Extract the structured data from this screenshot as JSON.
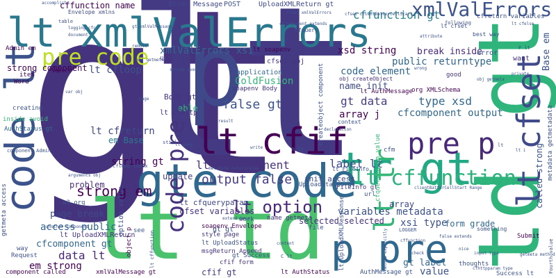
{
  "word_cloud": {
    "words": [
      {
        "text": "gt",
        "color": "#46337e",
        "vertical": false
      },
      {
        "text": "lt",
        "color": "#443a83",
        "vertical": false
      },
      {
        "text": "p",
        "color": "#3f4889",
        "vertical": false
      },
      {
        "text": "lt td",
        "color": "#4ac16d",
        "vertical": false
      },
      {
        "text": "td gt",
        "color": "#2fb47c",
        "vertical": true
      },
      {
        "text": "tr gt",
        "color": "#22a884",
        "vertical": false
      },
      {
        "text": "lt xmlValErrors",
        "color": "#2a788e",
        "vertical": false
      },
      {
        "text": "gte code",
        "color": "#31688e",
        "vertical": false
      },
      {
        "text": "code lt",
        "color": "#3b528b",
        "vertical": true
      },
      {
        "text": "lt cfif",
        "color": "#440154",
        "vertical": false
      },
      {
        "text": "lt cffunction",
        "color": "#2db27d",
        "vertical": false
      },
      {
        "text": "pre p",
        "color": "#482878",
        "vertical": false
      },
      {
        "text": "lt cfset",
        "color": "#3e4a89",
        "vertical": true
      },
      {
        "text": "p pre",
        "color": "#31688e",
        "vertical": false
      },
      {
        "text": "pre code",
        "color": "#bddf26",
        "vertical": false
      },
      {
        "text": "xmlValErrors gt",
        "color": "#3b528b",
        "vertical": false
      },
      {
        "text": "cffunction gt",
        "color": "#26828e",
        "vertical": false
      },
      {
        "text": "cffunction name",
        "color": "#440154",
        "vertical": false
      },
      {
        "text": "code pre",
        "color": "#46337e",
        "vertical": true
      },
      {
        "text": "lt cfcomponent",
        "color": "#46337e",
        "vertical": false
      },
      {
        "text": "lt option",
        "color": "#482878",
        "vertical": false
      },
      {
        "text": "lt tr",
        "color": "#35b779",
        "vertical": true
      },
      {
        "text": "false gt",
        "color": "#3b528b",
        "vertical": false
      },
      {
        "text": "strong em",
        "color": "#440154",
        "vertical": false
      },
      {
        "text": "output false",
        "color": "#443a83",
        "vertical": false
      },
      {
        "text": "ColdFusion",
        "color": "#35b779",
        "vertical": false
      },
      {
        "text": "gt data",
        "color": "#433e85",
        "vertical": false
      },
      {
        "text": "xsd string",
        "color": "#440154",
        "vertical": false
      },
      {
        "text": "xmlValErrors xsi",
        "color": "#31688e",
        "vertical": false
      },
      {
        "text": "lt cfloop",
        "color": "#3b528b",
        "vertical": false
      },
      {
        "text": "public returntype",
        "color": "#31688e",
        "vertical": false
      },
      {
        "text": "break inside",
        "color": "#482878",
        "vertical": false
      },
      {
        "text": "code element",
        "color": "#31688e",
        "vertical": false
      },
      {
        "text": "type xsd",
        "color": "#31688e",
        "vertical": false
      },
      {
        "text": "label lt",
        "color": "#3e4989",
        "vertical": false
      },
      {
        "text": "cfcomponent output",
        "color": "#31688e",
        "vertical": false
      },
      {
        "text": "array j",
        "color": "#440154",
        "vertical": false
      },
      {
        "text": "string gt",
        "color": "#440154",
        "vertical": false
      },
      {
        "text": "lt cfreturn",
        "color": "#3e4989",
        "vertical": false
      },
      {
        "text": "em Base",
        "color": "#2a788e",
        "vertical": false
      },
      {
        "text": "problem",
        "color": "#472d7b",
        "vertical": false
      },
      {
        "text": "data lt",
        "color": "#482878",
        "vertical": false
      },
      {
        "text": "em strong",
        "color": "#440154",
        "vertical": false
      },
      {
        "text": "access public",
        "color": "#33638d",
        "vertical": false
      },
      {
        "text": "cfcomponent gt",
        "color": "#31688e",
        "vertical": false
      },
      {
        "text": "page break",
        "color": "#3e4a89",
        "vertical": false
      },
      {
        "text": "lt UploadXMLReturn",
        "color": "#46337e",
        "vertical": false
      },
      {
        "text": "variables metadata",
        "color": "#3b528b",
        "vertical": false
      },
      {
        "text": "selected selected",
        "color": "#46337e",
        "vertical": false
      },
      {
        "text": "cfset variables",
        "color": "#46337e",
        "vertical": false
      },
      {
        "text": "lt cfqueryparam",
        "color": "#3e4989",
        "vertical": false
      },
      {
        "text": "xsi type",
        "color": "#3b528b",
        "vertical": false
      },
      {
        "text": "form grade",
        "color": "#31688e",
        "vertical": false
      },
      {
        "text": "gt label",
        "color": "#31688e",
        "vertical": false
      },
      {
        "text": "value",
        "color": "#3b528b",
        "vertical": false
      },
      {
        "text": "cfif gt",
        "color": "#433e85",
        "vertical": false
      },
      {
        "text": "Base em",
        "color": "#3b528b",
        "vertical": true
      },
      {
        "text": "called strong",
        "color": "#3b528b",
        "vertical": true
      },
      {
        "text": "update",
        "color": "#433e85",
        "vertical": false
      },
      {
        "text": "init access",
        "color": "#3e4989",
        "vertical": false
      },
      {
        "text": "array",
        "color": "#3e4989",
        "vertical": false
      },
      {
        "text": "cfset obj",
        "color": "#46337e",
        "vertical": false
      },
      {
        "text": "application",
        "color": "#31688e",
        "vertical": false
      },
      {
        "text": "name init",
        "color": "#3e4989",
        "vertical": false
      },
      {
        "text": "Body gt",
        "color": "#46337e",
        "vertical": false
      },
      {
        "text": "able",
        "color": "#35b779",
        "vertical": false
      },
      {
        "text": "lt cfhttp",
        "color": "#46337e",
        "vertical": false
      },
      {
        "text": "strong component",
        "color": "#440154",
        "vertical": false
      },
      {
        "text": "Error Message",
        "color": "#3e4989",
        "vertical": false
      },
      {
        "text": "POST",
        "color": "#3b528b",
        "vertical": false
      },
      {
        "text": "UploadXMLReturn gt",
        "color": "#3e4989",
        "vertical": false
      },
      {
        "text": "Envelope xmlns",
        "color": "#3e4989",
        "vertical": false
      },
      {
        "text": "Admin em",
        "color": "#440154",
        "vertical": false
      },
      {
        "text": "item",
        "color": "#440154",
        "vertical": false
      },
      {
        "text": "Word",
        "color": "#440154",
        "vertical": false
      },
      {
        "text": "creating",
        "color": "#3b528b",
        "vertical": false
      },
      {
        "text": "inside avoid",
        "color": "#35b779",
        "vertical": false
      },
      {
        "text": "AuthStatus gt",
        "color": "#31688e",
        "vertical": false
      },
      {
        "text": "select",
        "color": "#440154",
        "vertical": false
      },
      {
        "text": "lt AuthMessage",
        "color": "#440154",
        "vertical": false
      },
      {
        "text": "org XMLSchema",
        "color": "#440154",
        "vertical": false
      },
      {
        "text": "obj createObject",
        "color": "#46337e",
        "vertical": false
      },
      {
        "text": "soapenv Body",
        "color": "#46337e",
        "vertical": false
      },
      {
        "text": "error",
        "color": "#3b528b",
        "vertical": false
      },
      {
        "text": "want",
        "color": "#46337e",
        "vertical": false
      },
      {
        "text": "good",
        "color": "#46337e",
        "vertical": false
      },
      {
        "text": "FileInfo gt",
        "color": "#443a83",
        "vertical": false
      },
      {
        "text": "UploadStatus gt",
        "color": "#3b528b",
        "vertical": false
      },
      {
        "text": "lt soapenv",
        "color": "#440154",
        "vertical": false
      },
      {
        "text": "using",
        "color": "#433e85",
        "vertical": false
      },
      {
        "text": "name getmeta",
        "color": "#46337e",
        "vertical": false
      },
      {
        "text": "work",
        "color": "#3e4989",
        "vertical": false
      },
      {
        "text": "style page",
        "color": "#46337e",
        "vertical": false
      },
      {
        "text": "soapenv Envelope",
        "color": "#440154",
        "vertical": false
      },
      {
        "text": "lt UploadStatus",
        "color": "#3b528b",
        "vertical": false
      },
      {
        "text": "msgReturn Append",
        "color": "#46337e",
        "vertical": false
      },
      {
        "text": "cfif form",
        "color": "#46337e",
        "vertical": false
      },
      {
        "text": "lt AuthStatus",
        "color": "#440154",
        "vertical": false
      },
      {
        "text": "AuthMessage gt",
        "color": "#3b528b",
        "vertical": false
      },
      {
        "text": "gt gt",
        "color": "#3b528b",
        "vertical": false
      },
      {
        "text": "gt Success",
        "color": "#3b528b",
        "vertical": false
      },
      {
        "text": "w3 org",
        "color": "#3b528b",
        "vertical": false
      },
      {
        "text": "see",
        "color": "#3b528b",
        "vertical": false
      },
      {
        "text": "component called",
        "color": "#440154",
        "vertical": false
      },
      {
        "text": "xmlValMessage gt",
        "color": "#440154",
        "vertical": false
      },
      {
        "text": "way",
        "color": "#3b528b",
        "vertical": false
      },
      {
        "text": "Request",
        "color": "#3b528b",
        "vertical": false
      },
      {
        "text": "Submit",
        "color": "#440154",
        "vertical": false
      },
      {
        "text": "thoughts",
        "color": "#3b528b",
        "vertical": false
      },
      {
        "text": "Success lt",
        "color": "#3b528b",
        "vertical": false
      },
      {
        "text": "file",
        "color": "#3b528b",
        "vertical": false
      },
      {
        "text": "cfm",
        "color": "#3b528b",
        "vertical": false
      },
      {
        "text": "url",
        "color": "#3b528b",
        "vertical": false
      },
      {
        "text": "option value",
        "color": "#3b528b",
        "vertical": true
      },
      {
        "text": "object p",
        "color": "#440154",
        "vertical": true
      },
      {
        "text": "getmeta access",
        "color": "#3b528b",
        "vertical": true
      },
      {
        "text": "metadata getmetadata",
        "color": "#3b528b",
        "vertical": true
      },
      {
        "text": "cfqueryparam value",
        "color": "#35b779",
        "vertical": true
      },
      {
        "text": "lt UploadXMLResponse",
        "color": "#3b528b",
        "vertical": true
      },
      {
        "text": "createobject component",
        "color": "#3b528b",
        "vertical": true
      },
      {
        "text": "lt cfset",
        "color": "#3b528b",
        "vertical": false
      },
      {
        "text": "something",
        "color": "#3b528b",
        "vertical": false
      },
      {
        "text": "following",
        "color": "#3b528b",
        "vertical": false
      },
      {
        "text": "best way",
        "color": "#3b528b",
        "vertical": false
      },
      {
        "text": "cfquery",
        "color": "#3b528b",
        "vertical": false
      },
      {
        "text": "context",
        "color": "#3b528b",
        "vertical": false
      },
      {
        "text": "lt FileInfo",
        "color": "#3b528b",
        "vertical": false
      },
      {
        "text": "cfloop index",
        "color": "#3b528b",
        "vertical": false
      },
      {
        "text": "metadata returnvalue",
        "color": "#3b528b",
        "vertical": false
      },
      {
        "text": "LOGGER",
        "color": "#3b528b",
        "vertical": false
      },
      {
        "text": "another component",
        "color": "#3b528b",
        "vertical": false
      },
      {
        "text": "component Admin",
        "color": "#3b528b",
        "vertical": false
      },
      {
        "text": "obj getmeta",
        "color": "#3b528b",
        "vertical": false
      },
      {
        "text": "accomplish",
        "color": "#3b528b",
        "vertical": false
      },
      {
        "text": "strong even",
        "color": "#3b528b",
        "vertical": false
      },
      {
        "text": "cfreturn variables",
        "color": "#3b528b",
        "vertical": false
      },
      {
        "text": "cfset clientBatterCellStart",
        "color": "#3b528b",
        "vertical": false
      },
      {
        "text": "clientBatterCellStart Range",
        "color": "#3b528b",
        "vertical": false
      },
      {
        "text": "lt Body",
        "color": "#3b528b",
        "vertical": false
      },
      {
        "text": "logging cfc",
        "color": "#3b528b",
        "vertical": false
      },
      {
        "text": "var obj",
        "color": "#3b528b",
        "vertical": false
      },
      {
        "text": "page",
        "color": "#3b528b",
        "vertical": false
      },
      {
        "text": "still",
        "color": "#3b528b",
        "vertical": false
      },
      {
        "text": "write",
        "color": "#3b528b",
        "vertical": false
      },
      {
        "text": "B lt",
        "color": "#3b528b",
        "vertical": false
      },
      {
        "text": "result",
        "color": "#3b528b",
        "vertical": false
      },
      {
        "text": "declaration",
        "color": "#3b528b",
        "vertical": false
      },
      {
        "text": "arguments obj",
        "color": "#3b528b",
        "vertical": false
      },
      {
        "text": "extend base",
        "color": "#3b528b",
        "vertical": false
      },
      {
        "text": "input type",
        "color": "#3b528b",
        "vertical": false
      },
      {
        "text": "nice",
        "color": "#3b528b",
        "vertical": false
      },
      {
        "text": "check",
        "color": "#3b528b",
        "vertical": false
      },
      {
        "text": "false extends",
        "color": "#3b528b",
        "vertical": false
      },
      {
        "text": "cffunction",
        "color": "#3b528b",
        "vertical": false
      },
      {
        "text": "getmeta method",
        "color": "#3b528b",
        "vertical": false
      },
      {
        "text": "obj getmeta",
        "color": "#3b528b",
        "vertical": false
      },
      {
        "text": "content",
        "color": "#3b528b",
        "vertical": false
      },
      {
        "text": "C lt",
        "color": "#3b528b",
        "vertical": false
      },
      {
        "text": "lt",
        "color": "#3b528b",
        "vertical": false
      },
      {
        "text": "F lt",
        "color": "#3b528b",
        "vertical": false
      },
      {
        "text": "table",
        "color": "#3b528b",
        "vertical": false
      },
      {
        "text": "document",
        "color": "#3b528b",
        "vertical": false
      },
      {
        "text": "wrong",
        "color": "#3b528b",
        "vertical": false
      },
      {
        "text": "lt cfelse",
        "color": "#3b528b",
        "vertical": false
      },
      {
        "text": "cfhttpparam type",
        "color": "#3b528b",
        "vertical": false
      },
      {
        "text": "gt xmlValMessage",
        "color": "#3b528b",
        "vertical": false
      },
      {
        "text": "cfset xmlValErrors",
        "color": "#3b528b",
        "vertical": false
      },
      {
        "text": "remote",
        "color": "#3b528b",
        "vertical": false
      },
      {
        "text": "private",
        "color": "#3b528b",
        "vertical": false
      },
      {
        "text": "lt i",
        "color": "#3b528b",
        "vertical": false
      },
      {
        "text": "Fourth value",
        "color": "#3b528b",
        "vertical": true
      },
      {
        "text": "cfcomponent extends",
        "color": "#3b528b",
        "vertical": false
      },
      {
        "text": "method explicitly",
        "color": "#3b528b",
        "vertical": true
      },
      {
        "text": "lt cffunction",
        "color": "#3b528b",
        "vertical": true
      },
      {
        "text": "attribute",
        "color": "#3b528b",
        "vertical": false
      }
    ]
  }
}
